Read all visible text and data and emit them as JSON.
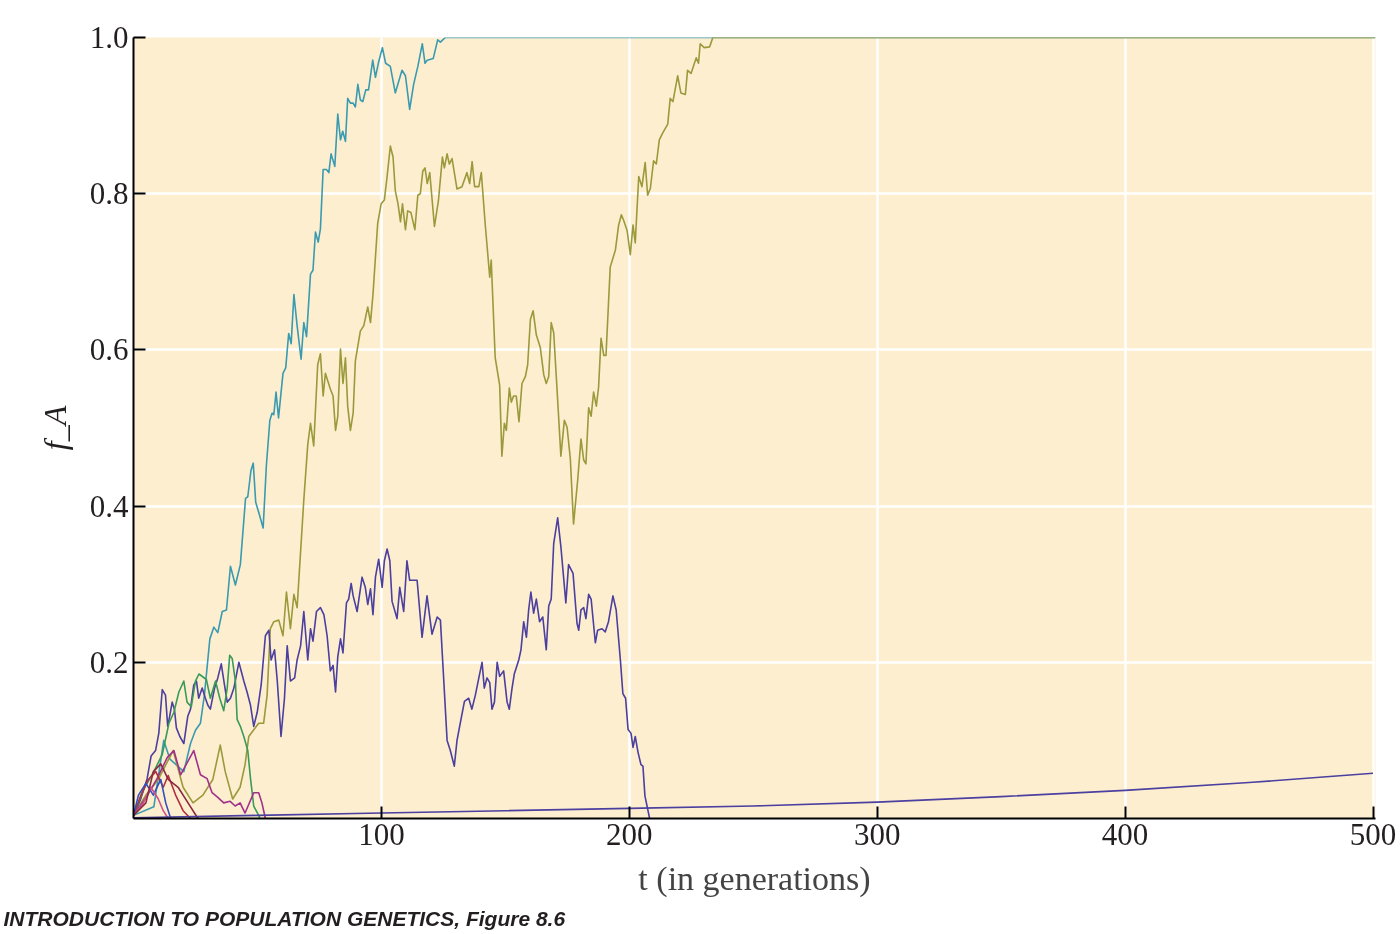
{
  "chart_data": {
    "type": "line",
    "xlabel": "t (in generations)",
    "ylabel": "f_A",
    "xlim": [
      0,
      501
    ],
    "ylim": [
      0,
      1
    ],
    "xticks": [
      100,
      200,
      300,
      400,
      500
    ],
    "yticks": [
      0.2,
      0.4,
      0.6,
      0.8,
      {
        "value": 1.0,
        "label": "1.0"
      }
    ],
    "grid": true,
    "annotations": [
      "INTRODUCTION TO POPULATION GENETICS, Figure 8.6"
    ],
    "series": [
      {
        "color": "#3a9ab0",
        "x": [
          0,
          8.2,
          12.2,
          14.7,
          20.3,
          23,
          25,
          27,
          28.6,
          30.8,
          32.4,
          34,
          35.8,
          37.5,
          39.1,
          41.1,
          43.1,
          45.2,
          46.1,
          47.4,
          48.3,
          49.3,
          50.5,
          52.3,
          53.6,
          55.0,
          55.9,
          56.6,
          57.5,
          58.5,
          60.3,
          61.4,
          62.6,
          63.6,
          64.7,
          66.0,
          67.6,
          68.7,
          69.8,
          71.4,
          72.4,
          73.4,
          74.5,
          75.4,
          76.5,
          77.8,
          78.8,
          79.7,
          81.2,
          82.4,
          83.5,
          84.4,
          85.5,
          86.4,
          87.5,
          88.6,
          89.5,
          90.5,
          91.5,
          92.5,
          93.7,
          94.8,
          96.5,
          97.6,
          98.9,
          100.4,
          101.7,
          103.6,
          105.6,
          108.3,
          109.7,
          111.4,
          113.0,
          114.7,
          116.5,
          117.6,
          118.5,
          120.9,
          122.7,
          123.8,
          125.8,
          501
        ],
        "values": [
          0.004,
          0.015,
          0.1,
          0.076,
          0.06,
          0.096,
          0.113,
          0.122,
          0.158,
          0.23,
          0.245,
          0.238,
          0.265,
          0.267,
          0.323,
          0.299,
          0.325,
          0.41,
          0.412,
          0.446,
          0.455,
          0.405,
          0.392,
          0.372,
          0.452,
          0.51,
          0.519,
          0.517,
          0.546,
          0.513,
          0.57,
          0.577,
          0.621,
          0.608,
          0.671,
          0.631,
          0.588,
          0.635,
          0.617,
          0.697,
          0.702,
          0.751,
          0.738,
          0.755,
          0.831,
          0.831,
          0.827,
          0.851,
          0.835,
          0.902,
          0.869,
          0.88,
          0.867,
          0.922,
          0.916,
          0.916,
          0.911,
          0.94,
          0.92,
          0.918,
          0.933,
          0.933,
          0.971,
          0.949,
          0.969,
          0.987,
          0.967,
          0.963,
          0.929,
          0.958,
          0.951,
          0.908,
          0.94,
          0.963,
          0.992,
          0.967,
          0.971,
          0.973,
          0.997,
          0.994,
          1.0,
          1.0
        ]
      },
      {
        "color": "#9a9a3c",
        "x": [
          0,
          5,
          10,
          16,
          20,
          24,
          28,
          32,
          35,
          37,
          40,
          43,
          45,
          46.5,
          48.6,
          50.5,
          52.5,
          53.9,
          55.2,
          56.6,
          58.6,
          60.3,
          61.7,
          63.3,
          64.7,
          66,
          68.7,
          70.3,
          71.4,
          72.7,
          74.3,
          75.4,
          76.5,
          77.4,
          79.4,
          80.5,
          81.5,
          82.4,
          83.5,
          84.5,
          85.5,
          86.4,
          87.5,
          88.6,
          89.5,
          91.5,
          92.9,
          94.5,
          95.6,
          96.6,
          98.5,
          99.9,
          101.2,
          102.3,
          103.6,
          104.7,
          105.6,
          106.7,
          107.7,
          108.5,
          109.7,
          110.6,
          111.9,
          113.5,
          114.7,
          115.7,
          116.7,
          117.6,
          118.5,
          119.5,
          121.4,
          123,
          124.6,
          125.4,
          126.5,
          127.4,
          128.5,
          130.5,
          132.5,
          134.5,
          135.6,
          136.6,
          137.6,
          139.3,
          140.3,
          141.9,
          143.7,
          144.3,
          145.9,
          147.7,
          148.6,
          149.6,
          150.4,
          151.6,
          152.4,
          153.3,
          154.4,
          155.5,
          156.7,
          158.1,
          159,
          160.1,
          161.2,
          162.5,
          164.1,
          165.5,
          166.5,
          167.5,
          168.5,
          169.5,
          170.8,
          172.4,
          173.8,
          174.9,
          176.2,
          177.5,
          179.2,
          180.5,
          181.6,
          182.5,
          183.6,
          184.6,
          185.6,
          186.7,
          187.6,
          188.6,
          189.7,
          190.6,
          192.3,
          194.4,
          195.7,
          196.8,
          197.7,
          199.1,
          200.4,
          201.5,
          202.4,
          203.8,
          205.1,
          206.4,
          207.4,
          208.5,
          209.8,
          210.9,
          212.1,
          213.5,
          215.5,
          216.5,
          217.6,
          219.5,
          220.8,
          222.6,
          223.5,
          224.9,
          227,
          227.9,
          228.6,
          230.2,
          232.4,
          233.7,
          501
        ],
        "values": [
          0.005,
          0.03,
          0.05,
          0.087,
          0.04,
          0.02,
          0.03,
          0.05,
          0.094,
          0.06,
          0.025,
          0.04,
          0.069,
          0.105,
          0.114,
          0.122,
          0.122,
          0.158,
          0.243,
          0.252,
          0.254,
          0.234,
          0.29,
          0.243,
          0.287,
          0.27,
          0.408,
          0.479,
          0.506,
          0.477,
          0.581,
          0.595,
          0.541,
          0.57,
          0.55,
          0.541,
          0.497,
          0.515,
          0.601,
          0.557,
          0.59,
          0.528,
          0.497,
          0.519,
          0.586,
          0.624,
          0.631,
          0.655,
          0.635,
          0.671,
          0.762,
          0.787,
          0.792,
          0.822,
          0.861,
          0.847,
          0.804,
          0.787,
          0.764,
          0.787,
          0.754,
          0.778,
          0.776,
          0.754,
          0.798,
          0.8,
          0.829,
          0.833,
          0.813,
          0.827,
          0.758,
          0.791,
          0.847,
          0.833,
          0.851,
          0.838,
          0.845,
          0.806,
          0.809,
          0.827,
          0.813,
          0.841,
          0.809,
          0.809,
          0.827,
          0.76,
          0.693,
          0.715,
          0.59,
          0.555,
          0.464,
          0.506,
          0.497,
          0.551,
          0.533,
          0.541,
          0.541,
          0.508,
          0.557,
          0.566,
          0.581,
          0.639,
          0.65,
          0.619,
          0.603,
          0.568,
          0.557,
          0.566,
          0.635,
          0.622,
          0.552,
          0.464,
          0.51,
          0.501,
          0.461,
          0.377,
          0.434,
          0.486,
          0.459,
          0.454,
          0.526,
          0.515,
          0.546,
          0.528,
          0.552,
          0.615,
          0.593,
          0.593,
          0.706,
          0.728,
          0.76,
          0.773,
          0.766,
          0.753,
          0.722,
          0.76,
          0.737,
          0.822,
          0.809,
          0.84,
          0.798,
          0.807,
          0.842,
          0.838,
          0.869,
          0.878,
          0.889,
          0.922,
          0.918,
          0.951,
          0.929,
          0.927,
          0.958,
          0.954,
          0.974,
          0.967,
          0.992,
          0.987,
          0.988,
          1.0,
          1.0
        ]
      },
      {
        "color": "#4b3fa0",
        "x": [
          0,
          2.8,
          5.5,
          7.1,
          8.9,
          10.2,
          11.6,
          12.9,
          13.8,
          14.6,
          15.6,
          16.5,
          17.3,
          18.7,
          20.3,
          21.9,
          23,
          24.3,
          25.4,
          26.3,
          27.7,
          29,
          30,
          31,
          32.7,
          34,
          35.4,
          36.7,
          37.8,
          39.1,
          40.5,
          42.5,
          44.5,
          45.8,
          47.2,
          48.5,
          49.9,
          51.5,
          53.2,
          54.6,
          55.5,
          56.9,
          58,
          59.5,
          60.9,
          62,
          63.3,
          65,
          66,
          67.4,
          68.7,
          70.3,
          71.4,
          72.4,
          73.8,
          75.4,
          76.8,
          78.1,
          79.4,
          80.5,
          81.5,
          82.4,
          83.5,
          84.5,
          85.9,
          86.8,
          87.8,
          88.6,
          90.2,
          92.2,
          93.5,
          94.5,
          95.6,
          96.6,
          97.6,
          98.9,
          100.3,
          101.2,
          102.3,
          103.4,
          104.3,
          106.3,
          107.4,
          109,
          110.3,
          111.4,
          114.4,
          116.4,
          118.4,
          120.4,
          122.5,
          123.8,
          125.1,
          126.5,
          127.8,
          129.4,
          130.5,
          132.1,
          133.5,
          135.2,
          136.5,
          137.9,
          139.3,
          140.6,
          141.5,
          142.6,
          143.7,
          144.6,
          145.6,
          146.7,
          147.7,
          149.3,
          150.7,
          151.6,
          152.7,
          153.6,
          155.4,
          156.3,
          157.4,
          158.5,
          159.4,
          160.3,
          161.4,
          162.5,
          163.8,
          165.1,
          166.5,
          167.5,
          168.5,
          169.5,
          171.1,
          172.4,
          174.4,
          175.5,
          177.3,
          178.9,
          179.6,
          180.5,
          181.6,
          182.5,
          183.6,
          184.6,
          186.3,
          187.2,
          189,
          190.3,
          191.6,
          193.4,
          194.7,
          196.4,
          197.4,
          198.5,
          199.5,
          200.7,
          201.5,
          202.4,
          203.5,
          204.7,
          205.5,
          206.3,
          208.2
        ],
        "values": [
          0.004,
          0.024,
          0.051,
          0.08,
          0.087,
          0.109,
          0.165,
          0.158,
          0.118,
          0.131,
          0.149,
          0.14,
          0.116,
          0.105,
          0.096,
          0.131,
          0.14,
          0.171,
          0.176,
          0.154,
          0.167,
          0.154,
          0.145,
          0.14,
          0.167,
          0.18,
          0.198,
          0.171,
          0.149,
          0.154,
          0.167,
          0.2,
          0.176,
          0.162,
          0.145,
          0.118,
          0.136,
          0.171,
          0.234,
          0.241,
          0.203,
          0.216,
          0.176,
          0.105,
          0.154,
          0.221,
          0.176,
          0.18,
          0.203,
          0.221,
          0.265,
          0.203,
          0.243,
          0.227,
          0.265,
          0.27,
          0.261,
          0.234,
          0.189,
          0.196,
          0.162,
          0.207,
          0.23,
          0.212,
          0.276,
          0.281,
          0.301,
          0.285,
          0.265,
          0.309,
          0.296,
          0.274,
          0.294,
          0.261,
          0.309,
          0.332,
          0.296,
          0.33,
          0.345,
          0.33,
          0.278,
          0.256,
          0.296,
          0.265,
          0.33,
          0.305,
          0.305,
          0.232,
          0.285,
          0.236,
          0.258,
          0.254,
          0.18,
          0.1,
          0.087,
          0.067,
          0.1,
          0.127,
          0.15,
          0.154,
          0.14,
          0.158,
          0.18,
          0.2,
          0.167,
          0.18,
          0.174,
          0.14,
          0.149,
          0.2,
          0.182,
          0.189,
          0.149,
          0.14,
          0.167,
          0.185,
          0.203,
          0.216,
          0.252,
          0.232,
          0.267,
          0.29,
          0.263,
          0.281,
          0.252,
          0.258,
          0.216,
          0.272,
          0.281,
          0.352,
          0.385,
          0.348,
          0.276,
          0.325,
          0.314,
          0.25,
          0.241,
          0.267,
          0.27,
          0.256,
          0.287,
          0.281,
          0.225,
          0.241,
          0.243,
          0.239,
          0.252,
          0.285,
          0.267,
          0.203,
          0.16,
          0.154,
          0.114,
          0.109,
          0.091,
          0.105,
          0.085,
          0.069,
          0.067,
          0.029,
          0.0
        ]
      },
      {
        "color": "#3a9a5a",
        "x": [
          0,
          4.2,
          8.2,
          11.6,
          14.3,
          16.3,
          18.3,
          20.3,
          21.6,
          23.3,
          25,
          26.4,
          29.4,
          31,
          33.1,
          34.8,
          36.4,
          37.8,
          38.8,
          39.8,
          41.1,
          41.8,
          43.1,
          44.5,
          46.1,
          47.2,
          48.5,
          50.5,
          51
        ],
        "values": [
          0.004,
          0.038,
          0.06,
          0.082,
          0.122,
          0.136,
          0.162,
          0.176,
          0.149,
          0.143,
          0.176,
          0.185,
          0.178,
          0.154,
          0.176,
          0.154,
          0.138,
          0.167,
          0.209,
          0.205,
          0.176,
          0.127,
          0.118,
          0.105,
          0.087,
          0.051,
          0.016,
          0.004,
          0.0
        ]
      },
      {
        "color": "#a0308a",
        "x": [
          0,
          5.5,
          9.5,
          13.6,
          16.3,
          19,
          24.3,
          27,
          29.7,
          31.7,
          34,
          36.4,
          39,
          41,
          43,
          45,
          48.5,
          50.5,
          51.8,
          53.2
        ],
        "values": [
          0.004,
          0.029,
          0.051,
          0.078,
          0.087,
          0.056,
          0.087,
          0.056,
          0.051,
          0.033,
          0.027,
          0.02,
          0.022,
          0.016,
          0.02,
          0.007,
          0.033,
          0.033,
          0.02,
          0.0
        ]
      },
      {
        "color": "#b03040",
        "x": [
          0,
          3,
          6,
          9,
          12,
          14,
          17,
          20,
          23
        ],
        "values": [
          0.004,
          0.03,
          0.05,
          0.06,
          0.04,
          0.055,
          0.03,
          0.01,
          0.0
        ]
      },
      {
        "color": "#3050c0",
        "x": [
          0,
          2,
          5,
          8,
          11,
          13,
          15
        ],
        "values": [
          0.004,
          0.03,
          0.045,
          0.03,
          0.05,
          0.02,
          0.0
        ]
      },
      {
        "color": "#d0508a",
        "x": [
          0,
          4,
          7,
          10,
          12,
          14
        ],
        "values": [
          0.004,
          0.02,
          0.04,
          0.025,
          0.01,
          0.0
        ]
      },
      {
        "color": "#8a2a40",
        "x": [
          0,
          5,
          8,
          11,
          14,
          18,
          22,
          26
        ],
        "values": [
          0.004,
          0.02,
          0.06,
          0.07,
          0.05,
          0.04,
          0.02,
          0.0
        ]
      },
      {
        "color": "#4b3fa0",
        "x": [
          0,
          50,
          100,
          150,
          200,
          250,
          300,
          350,
          400,
          450,
          500
        ],
        "values": [
          0.001,
          0.004,
          0.007,
          0.01,
          0.013,
          0.016,
          0.021,
          0.028,
          0.036,
          0.046,
          0.058
        ]
      }
    ]
  }
}
